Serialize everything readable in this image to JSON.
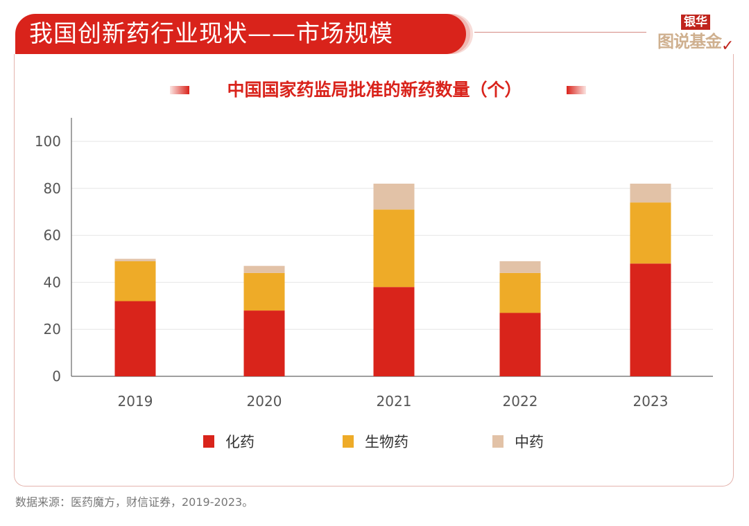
{
  "header": {
    "title": "我国创新药行业现状——市场规模",
    "logo_top": "银华",
    "logo_bottom": "图说基金",
    "logo_check": "✓"
  },
  "chart_data": {
    "type": "bar",
    "stacked": true,
    "title": "中国国家药监局批准的新药数量（个）",
    "xlabel": "",
    "ylabel": "",
    "categories": [
      "2019",
      "2020",
      "2021",
      "2022",
      "2023"
    ],
    "series": [
      {
        "name": "化药",
        "color": "#d9241b",
        "values": [
          32,
          28,
          38,
          27,
          48
        ]
      },
      {
        "name": "生物药",
        "color": "#eeab28",
        "values": [
          17,
          16,
          33,
          17,
          26
        ]
      },
      {
        "name": "中药",
        "color": "#e2c2a7",
        "values": [
          1,
          3,
          11,
          5,
          8
        ]
      }
    ],
    "ylim": [
      0,
      110
    ],
    "yticks": [
      0,
      20,
      40,
      60,
      80,
      100
    ],
    "grid": true,
    "legend_position": "bottom-center"
  },
  "footer": {
    "source": "数据来源：医药魔方，财信证券，2019-2023。"
  }
}
